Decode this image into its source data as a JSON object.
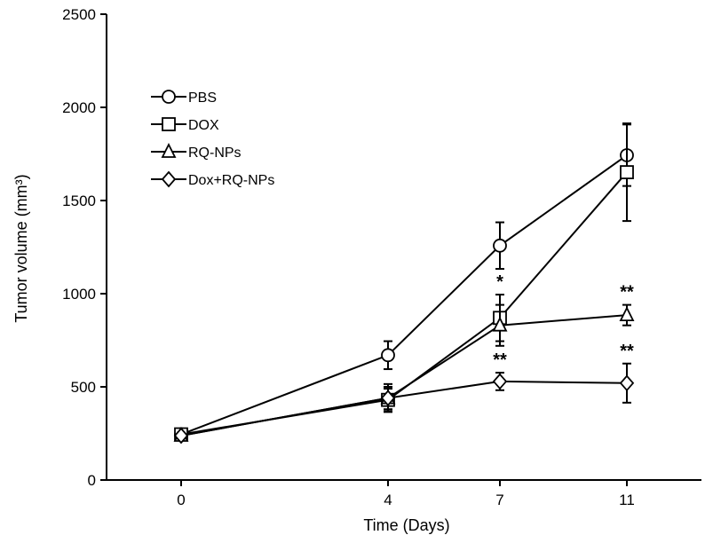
{
  "chart_data": {
    "type": "line",
    "title": "",
    "xlabel": "Time (Days)",
    "ylabel": "Tumor volume (mm³)",
    "ylim": [
      0,
      2500
    ],
    "yticks": [
      0,
      500,
      1000,
      1500,
      2000,
      2500
    ],
    "xticks": [
      0,
      4,
      7,
      11
    ],
    "x": [
      0,
      4,
      7,
      11
    ],
    "grid": false,
    "legend_position": "top-left",
    "series": [
      {
        "name": "PBS",
        "marker": "circle",
        "values": [
          245,
          670,
          1258,
          1743
        ],
        "errors": [
          15,
          75,
          125,
          165
        ]
      },
      {
        "name": "DOX",
        "marker": "square",
        "values": [
          245,
          430,
          870,
          1652
        ],
        "errors": [
          15,
          60,
          125,
          262
        ]
      },
      {
        "name": "RQ-NPs",
        "marker": "triangle",
        "values": [
          238,
          440,
          830,
          885
        ],
        "errors": [
          15,
          60,
          110,
          55
        ]
      },
      {
        "name": "Dox+RQ-NPs",
        "marker": "diamond",
        "values": [
          238,
          440,
          529,
          520
        ],
        "errors": [
          15,
          75,
          47,
          105
        ]
      }
    ],
    "annotations": [
      {
        "text": "*",
        "x": 7,
        "series": "DOX"
      },
      {
        "text": "**",
        "x": 11,
        "series": "RQ-NPs"
      },
      {
        "text": "**",
        "x": 7,
        "series": "Dox+RQ-NPs"
      },
      {
        "text": "**",
        "x": 11,
        "series": "Dox+RQ-NPs"
      }
    ]
  }
}
